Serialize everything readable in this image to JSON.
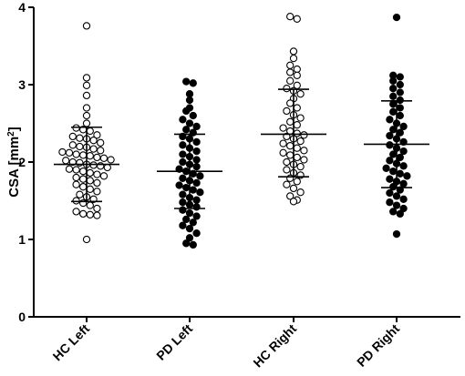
{
  "chart_data": {
    "type": "scatter",
    "ylabel_main": "CSA [mm",
    "ylabel_sup": "2",
    "ylabel_close": "]",
    "ylim": [
      0,
      4
    ],
    "yticks": [
      0,
      1,
      2,
      3,
      4
    ],
    "grid": false,
    "categories": [
      "HC Left",
      "PD Left",
      "HC Right",
      "PD Right"
    ],
    "series": [
      {
        "category": "HC Left",
        "marker": "open-circle",
        "mean": 1.97,
        "sd_low": 1.49,
        "sd_high": 2.45,
        "values": [
          3.76,
          3.09,
          2.99,
          2.86,
          2.7,
          2.6,
          2.5,
          2.44,
          2.42,
          2.4,
          2.35,
          2.33,
          2.31,
          2.3,
          2.28,
          2.25,
          2.22,
          2.2,
          2.19,
          2.17,
          2.15,
          2.13,
          2.12,
          2.1,
          2.09,
          2.08,
          2.06,
          2.05,
          2.03,
          2.02,
          2.0,
          1.99,
          1.97,
          1.96,
          1.95,
          1.93,
          1.91,
          1.9,
          1.88,
          1.86,
          1.84,
          1.82,
          1.8,
          1.78,
          1.76,
          1.73,
          1.71,
          1.68,
          1.65,
          1.62,
          1.58,
          1.55,
          1.52,
          1.5,
          1.47,
          1.44,
          1.4,
          1.36,
          1.33,
          1.32,
          1.31,
          1.0
        ]
      },
      {
        "category": "PD Left",
        "marker": "filled-circle",
        "mean": 1.88,
        "sd_low": 1.4,
        "sd_high": 2.36,
        "values": [
          3.04,
          3.02,
          2.88,
          2.8,
          2.7,
          2.66,
          2.6,
          2.55,
          2.5,
          2.46,
          2.42,
          2.38,
          2.33,
          2.3,
          2.26,
          2.22,
          2.18,
          2.14,
          2.1,
          2.07,
          2.03,
          2.0,
          1.97,
          1.94,
          1.91,
          1.88,
          1.85,
          1.82,
          1.79,
          1.76,
          1.73,
          1.7,
          1.67,
          1.64,
          1.61,
          1.58,
          1.54,
          1.51,
          1.48,
          1.45,
          1.42,
          1.38,
          1.34,
          1.3,
          1.26,
          1.22,
          1.18,
          1.14,
          1.08,
          1.02,
          0.95,
          0.93
        ]
      },
      {
        "category": "HC Right",
        "marker": "open-circle",
        "mean": 2.36,
        "sd_low": 1.81,
        "sd_high": 2.94,
        "values": [
          3.88,
          3.85,
          3.43,
          3.34,
          3.25,
          3.2,
          3.16,
          3.12,
          3.05,
          2.99,
          2.95,
          2.92,
          2.88,
          2.82,
          2.76,
          2.7,
          2.66,
          2.61,
          2.57,
          2.52,
          2.48,
          2.44,
          2.4,
          2.37,
          2.35,
          2.33,
          2.3,
          2.27,
          2.24,
          2.21,
          2.18,
          2.15,
          2.12,
          2.09,
          2.06,
          2.03,
          2.0,
          1.97,
          1.94,
          1.9,
          1.86,
          1.83,
          1.79,
          1.75,
          1.71,
          1.66,
          1.61,
          1.56,
          1.51,
          1.49
        ]
      },
      {
        "category": "PD Right",
        "marker": "filled-circle",
        "mean": 2.23,
        "sd_low": 1.67,
        "sd_high": 2.79,
        "values": [
          3.87,
          3.12,
          3.1,
          3.05,
          3.0,
          2.95,
          2.9,
          2.85,
          2.8,
          2.75,
          2.7,
          2.65,
          2.6,
          2.55,
          2.5,
          2.46,
          2.42,
          2.38,
          2.34,
          2.3,
          2.26,
          2.22,
          2.18,
          2.14,
          2.1,
          2.06,
          2.02,
          1.98,
          1.95,
          1.92,
          1.88,
          1.85,
          1.82,
          1.78,
          1.75,
          1.72,
          1.68,
          1.64,
          1.6,
          1.56,
          1.52,
          1.48,
          1.44,
          1.4,
          1.36,
          1.33,
          1.07
        ]
      }
    ]
  }
}
